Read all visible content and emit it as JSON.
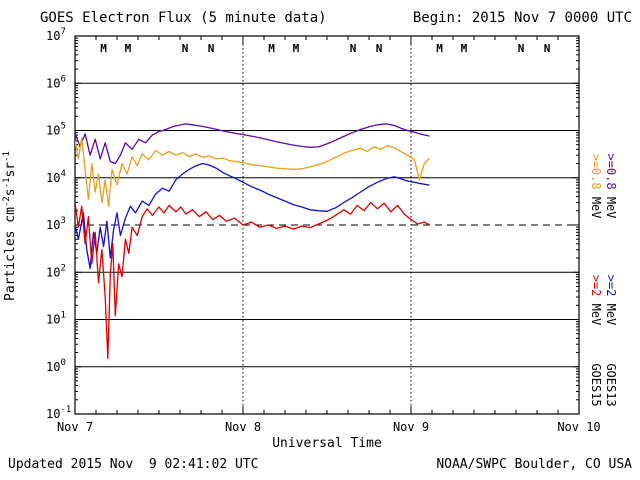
{
  "header": {
    "title": "GOES Electron Flux (5 minute data)",
    "begin": "Begin: 2015 Nov 7 0000 UTC"
  },
  "footer": {
    "updated": "Updated 2015 Nov  9 02:41:02 UTC",
    "source": "NOAA/SWPC Boulder, CO USA"
  },
  "chart_data": {
    "type": "line",
    "title": "GOES Electron Flux (5 minute data)",
    "x_axis": {
      "label": "Universal Time",
      "unit": "days since 2015 Nov 7 0000 UTC",
      "range_days": [
        0,
        3
      ],
      "minor_step_hours": 3,
      "ticks": [
        {
          "t": 0,
          "label": "Nov 7"
        },
        {
          "t": 1,
          "label": "Nov 8"
        },
        {
          "t": 2,
          "label": "Nov 9"
        },
        {
          "t": 3,
          "label": "Nov 10"
        }
      ]
    },
    "y_axis": {
      "log": true,
      "min": 0.1,
      "max": 10000000,
      "label_parts": [
        {
          "t": "Particles cm"
        },
        {
          "t": "-2",
          "sup": true
        },
        {
          "t": "s"
        },
        {
          "t": "-1",
          "sup": true
        },
        {
          "t": "sr"
        },
        {
          "t": "-1",
          "sup": true
        }
      ],
      "ticks": [
        {
          "exp": 7
        },
        {
          "exp": 6
        },
        {
          "exp": 5
        },
        {
          "exp": 4
        },
        {
          "exp": 3
        },
        {
          "exp": 2
        },
        {
          "exp": 1
        },
        {
          "exp": 0
        },
        {
          "exp": -1
        }
      ]
    },
    "threshold": {
      "value": 1000,
      "line_style": "dashed"
    },
    "day_boundaries": [
      1,
      2
    ],
    "colors": {
      "red": "#dd0000",
      "blue": "#1111cc",
      "orange": "#e8a020",
      "purple": "#5a08a8"
    },
    "top_markers": [
      {
        "t": 0.17,
        "label": "M",
        "color": "#dd0000"
      },
      {
        "t": 0.315,
        "label": "M",
        "color": "#1111cc"
      },
      {
        "t": 0.655,
        "label": "N",
        "color": "#dd0000"
      },
      {
        "t": 0.81,
        "label": "N",
        "color": "#1111cc"
      },
      {
        "t": 1.17,
        "label": "M",
        "color": "#dd0000"
      },
      {
        "t": 1.315,
        "label": "M",
        "color": "#1111cc"
      },
      {
        "t": 1.655,
        "label": "N",
        "color": "#dd0000"
      },
      {
        "t": 1.81,
        "label": "N",
        "color": "#1111cc"
      },
      {
        "t": 2.17,
        "label": "M",
        "color": "#dd0000"
      },
      {
        "t": 2.315,
        "label": "M",
        "color": "#1111cc"
      },
      {
        "t": 2.655,
        "label": "N",
        "color": "#dd0000"
      },
      {
        "t": 2.81,
        "label": "N",
        "color": "#1111cc"
      }
    ],
    "legend": {
      "columns": [
        {
          "satellite": "GOES15",
          "channels": [
            {
              "value": ">=0.8",
              "unit": "MeV",
              "color": "#e8a020"
            },
            {
              "value": ">=2",
              "unit": "MeV",
              "color": "#dd0000"
            }
          ]
        },
        {
          "satellite": "GOES13",
          "channels": [
            {
              "value": ">=0.8",
              "unit": "MeV",
              "color": "#5a08a8"
            },
            {
              "value": ">=2",
              "unit": "MeV",
              "color": "#1111cc"
            }
          ]
        }
      ]
    },
    "series": [
      {
        "name": "GOES13 >=0.8 MeV",
        "color": "#5a08a8",
        "points": [
          [
            0.0,
            90000
          ],
          [
            0.03,
            45000
          ],
          [
            0.06,
            85000
          ],
          [
            0.09,
            30000
          ],
          [
            0.12,
            65000
          ],
          [
            0.15,
            25000
          ],
          [
            0.18,
            55000
          ],
          [
            0.21,
            22000
          ],
          [
            0.24,
            20000
          ],
          [
            0.27,
            30000
          ],
          [
            0.3,
            55000
          ],
          [
            0.34,
            40000
          ],
          [
            0.38,
            65000
          ],
          [
            0.42,
            55000
          ],
          [
            0.46,
            80000
          ],
          [
            0.5,
            95000
          ],
          [
            0.54,
            105000
          ],
          [
            0.58,
            120000
          ],
          [
            0.62,
            130000
          ],
          [
            0.66,
            138000
          ],
          [
            0.7,
            132000
          ],
          [
            0.74,
            125000
          ],
          [
            0.78,
            118000
          ],
          [
            0.82,
            110000
          ],
          [
            0.86,
            102000
          ],
          [
            0.9,
            95000
          ],
          [
            0.95,
            88000
          ],
          [
            1.0,
            82000
          ],
          [
            1.05,
            76000
          ],
          [
            1.1,
            70000
          ],
          [
            1.15,
            64000
          ],
          [
            1.2,
            58000
          ],
          [
            1.25,
            53000
          ],
          [
            1.3,
            49000
          ],
          [
            1.35,
            46000
          ],
          [
            1.4,
            44000
          ],
          [
            1.45,
            45000
          ],
          [
            1.5,
            52000
          ],
          [
            1.55,
            62000
          ],
          [
            1.6,
            75000
          ],
          [
            1.65,
            90000
          ],
          [
            1.7,
            105000
          ],
          [
            1.75,
            120000
          ],
          [
            1.8,
            132000
          ],
          [
            1.85,
            138000
          ],
          [
            1.9,
            128000
          ],
          [
            1.94,
            112000
          ],
          [
            1.98,
            100000
          ],
          [
            2.02,
            92000
          ],
          [
            2.06,
            84000
          ],
          [
            2.11,
            76000
          ]
        ]
      },
      {
        "name": "GOES15 >=0.8 MeV",
        "color": "#e8a020",
        "points": [
          [
            0.0,
            60000
          ],
          [
            0.02,
            25000
          ],
          [
            0.04,
            70000
          ],
          [
            0.06,
            15000
          ],
          [
            0.08,
            3500
          ],
          [
            0.1,
            20000
          ],
          [
            0.12,
            5000
          ],
          [
            0.14,
            12000
          ],
          [
            0.16,
            3000
          ],
          [
            0.18,
            9000
          ],
          [
            0.2,
            2500
          ],
          [
            0.22,
            15000
          ],
          [
            0.25,
            7000
          ],
          [
            0.28,
            20000
          ],
          [
            0.31,
            12000
          ],
          [
            0.34,
            28000
          ],
          [
            0.37,
            18000
          ],
          [
            0.4,
            32000
          ],
          [
            0.44,
            24000
          ],
          [
            0.48,
            38000
          ],
          [
            0.52,
            30000
          ],
          [
            0.56,
            36000
          ],
          [
            0.6,
            30000
          ],
          [
            0.64,
            34000
          ],
          [
            0.68,
            28000
          ],
          [
            0.72,
            32000
          ],
          [
            0.76,
            27000
          ],
          [
            0.8,
            29000
          ],
          [
            0.84,
            25000
          ],
          [
            0.88,
            26000
          ],
          [
            0.92,
            23000
          ],
          [
            0.96,
            22000
          ],
          [
            1.0,
            21000
          ],
          [
            1.05,
            19000
          ],
          [
            1.1,
            18000
          ],
          [
            1.15,
            17000
          ],
          [
            1.2,
            16000
          ],
          [
            1.25,
            15500
          ],
          [
            1.3,
            15000
          ],
          [
            1.35,
            15500
          ],
          [
            1.4,
            17000
          ],
          [
            1.45,
            19000
          ],
          [
            1.5,
            22000
          ],
          [
            1.55,
            27000
          ],
          [
            1.6,
            33000
          ],
          [
            1.65,
            38000
          ],
          [
            1.7,
            42000
          ],
          [
            1.74,
            36000
          ],
          [
            1.78,
            45000
          ],
          [
            1.82,
            40000
          ],
          [
            1.86,
            48000
          ],
          [
            1.9,
            43000
          ],
          [
            1.94,
            36000
          ],
          [
            1.98,
            30000
          ],
          [
            2.02,
            24000
          ],
          [
            2.05,
            9000
          ],
          [
            2.08,
            20000
          ],
          [
            2.11,
            26000
          ]
        ]
      },
      {
        "name": "GOES13 >=2 MeV",
        "color": "#1111cc",
        "points": [
          [
            0.0,
            1000
          ],
          [
            0.02,
            500
          ],
          [
            0.05,
            1800
          ],
          [
            0.07,
            300
          ],
          [
            0.09,
            120
          ],
          [
            0.11,
            700
          ],
          [
            0.13,
            250
          ],
          [
            0.15,
            900
          ],
          [
            0.17,
            350
          ],
          [
            0.19,
            1200
          ],
          [
            0.21,
            200
          ],
          [
            0.23,
            800
          ],
          [
            0.25,
            1800
          ],
          [
            0.27,
            600
          ],
          [
            0.3,
            1400
          ],
          [
            0.33,
            2500
          ],
          [
            0.36,
            1800
          ],
          [
            0.4,
            3200
          ],
          [
            0.44,
            2600
          ],
          [
            0.48,
            4500
          ],
          [
            0.52,
            6000
          ],
          [
            0.56,
            5200
          ],
          [
            0.6,
            9000
          ],
          [
            0.64,
            12000
          ],
          [
            0.68,
            15000
          ],
          [
            0.72,
            18000
          ],
          [
            0.76,
            20000
          ],
          [
            0.8,
            18500
          ],
          [
            0.84,
            16000
          ],
          [
            0.88,
            13000
          ],
          [
            0.92,
            11000
          ],
          [
            0.96,
            9500
          ],
          [
            1.0,
            8000
          ],
          [
            1.05,
            6500
          ],
          [
            1.1,
            5500
          ],
          [
            1.15,
            4500
          ],
          [
            1.2,
            3800
          ],
          [
            1.25,
            3200
          ],
          [
            1.3,
            2700
          ],
          [
            1.35,
            2400
          ],
          [
            1.4,
            2100
          ],
          [
            1.45,
            2000
          ],
          [
            1.5,
            1950
          ],
          [
            1.55,
            2300
          ],
          [
            1.6,
            3000
          ],
          [
            1.65,
            3800
          ],
          [
            1.7,
            5000
          ],
          [
            1.75,
            6500
          ],
          [
            1.8,
            8000
          ],
          [
            1.85,
            9500
          ],
          [
            1.9,
            10500
          ],
          [
            1.94,
            9500
          ],
          [
            1.98,
            8500
          ],
          [
            2.02,
            8000
          ],
          [
            2.06,
            7500
          ],
          [
            2.11,
            7000
          ]
        ]
      },
      {
        "name": "GOES15 >=2 MeV",
        "color": "#dd0000",
        "points": [
          [
            0.0,
            3000
          ],
          [
            0.02,
            900
          ],
          [
            0.04,
            2500
          ],
          [
            0.06,
            400
          ],
          [
            0.08,
            1500
          ],
          [
            0.1,
            150
          ],
          [
            0.12,
            700
          ],
          [
            0.14,
            60
          ],
          [
            0.16,
            300
          ],
          [
            0.18,
            30
          ],
          [
            0.195,
            1.5
          ],
          [
            0.21,
            90
          ],
          [
            0.225,
            400
          ],
          [
            0.24,
            12
          ],
          [
            0.26,
            150
          ],
          [
            0.28,
            80
          ],
          [
            0.3,
            500
          ],
          [
            0.32,
            250
          ],
          [
            0.34,
            900
          ],
          [
            0.37,
            600
          ],
          [
            0.4,
            1500
          ],
          [
            0.43,
            2200
          ],
          [
            0.46,
            1600
          ],
          [
            0.5,
            2400
          ],
          [
            0.53,
            1800
          ],
          [
            0.56,
            2600
          ],
          [
            0.6,
            1900
          ],
          [
            0.63,
            2400
          ],
          [
            0.66,
            1700
          ],
          [
            0.7,
            2100
          ],
          [
            0.74,
            1500
          ],
          [
            0.78,
            1900
          ],
          [
            0.82,
            1300
          ],
          [
            0.86,
            1600
          ],
          [
            0.9,
            1200
          ],
          [
            0.95,
            1400
          ],
          [
            1.0,
            1000
          ],
          [
            1.05,
            1150
          ],
          [
            1.1,
            900
          ],
          [
            1.15,
            1000
          ],
          [
            1.2,
            850
          ],
          [
            1.25,
            950
          ],
          [
            1.3,
            820
          ],
          [
            1.35,
            950
          ],
          [
            1.4,
            880
          ],
          [
            1.45,
            1050
          ],
          [
            1.5,
            1250
          ],
          [
            1.55,
            1600
          ],
          [
            1.6,
            2100
          ],
          [
            1.64,
            1700
          ],
          [
            1.68,
            2600
          ],
          [
            1.72,
            2000
          ],
          [
            1.76,
            3000
          ],
          [
            1.8,
            2200
          ],
          [
            1.84,
            2900
          ],
          [
            1.88,
            1900
          ],
          [
            1.92,
            2600
          ],
          [
            1.96,
            1700
          ],
          [
            2.0,
            1300
          ],
          [
            2.04,
            1050
          ],
          [
            2.08,
            1150
          ],
          [
            2.11,
            1000
          ]
        ]
      }
    ]
  }
}
